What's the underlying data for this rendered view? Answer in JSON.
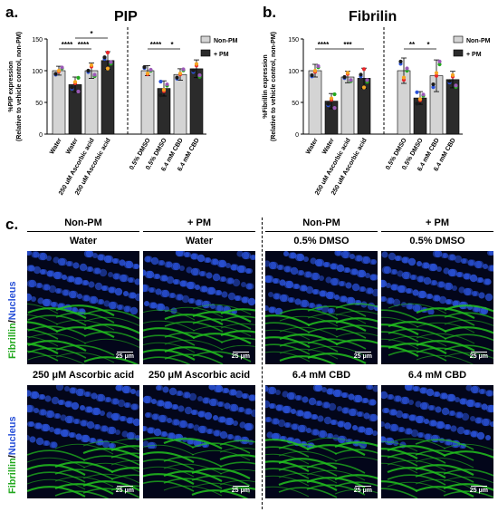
{
  "panels": {
    "a": "a.",
    "b": "b.",
    "c": "c."
  },
  "chart_data": [
    {
      "type": "bar",
      "title": "PIP",
      "ylabel": "%PIP expression",
      "ylabel2": "(Relative to vehicle control, non-PM)",
      "ylim": [
        0,
        150
      ],
      "yticks": [
        "0",
        "50",
        "100",
        "150"
      ],
      "categories": [
        "Water",
        "Water",
        "250 uM Ascorbic acid",
        "250 uM Ascorbic acid",
        "0.5% DMSO",
        "0.5% DMSO",
        "6.4 mM CBD",
        "6.4 mM CBD"
      ],
      "groups": [
        "Non-PM",
        "+ PM",
        "Non-PM",
        "+ PM",
        "Non-PM",
        "+ PM",
        "Non-PM",
        "+ PM"
      ],
      "values": [
        100,
        78,
        100,
        116,
        100,
        72,
        94,
        103
      ],
      "errors": [
        7,
        12,
        12,
        14,
        8,
        12,
        9,
        14
      ],
      "legend": [
        "Non-PM",
        "+ PM"
      ],
      "legend_position": "top-right",
      "significance": [
        {
          "label": "****"
        },
        {
          "label": "*"
        },
        {
          "label": "****"
        },
        {
          "label": "****"
        },
        {
          "label": "*"
        }
      ]
    },
    {
      "type": "bar",
      "title": "Fibrilin",
      "ylabel": "%Fibrillin expression",
      "ylabel2": "(Relative to vehicle control, non-PM)",
      "ylim": [
        0,
        150
      ],
      "yticks": [
        "0",
        "50",
        "100",
        "150"
      ],
      "categories": [
        "Water",
        "Water",
        "250 uM Ascorbic acid",
        "250 uM Ascorbic acid",
        "0.5% DMSO",
        "0.5% DMSO",
        "6.4 mM CBD",
        "6.4 mM CBD"
      ],
      "groups": [
        "Non-PM",
        "+ PM",
        "Non-PM",
        "+ PM",
        "Non-PM",
        "+ PM",
        "Non-PM",
        "+ PM"
      ],
      "values": [
        100,
        52,
        90,
        88,
        100,
        57,
        92,
        86
      ],
      "errors": [
        10,
        12,
        9,
        16,
        20,
        10,
        25,
        13
      ],
      "legend": [
        "Non-PM",
        "+ PM"
      ],
      "legend_position": "top-right",
      "significance": [
        {
          "label": "****"
        },
        {
          "label": "***"
        },
        {
          "label": "**"
        },
        {
          "label": "*"
        }
      ]
    }
  ],
  "microscopy": {
    "group_headers": [
      "Non-PM",
      "+ PM",
      "Non-PM",
      "+ PM"
    ],
    "top_labels": [
      "Water",
      "Water",
      "0.5% DMSO",
      "0.5% DMSO"
    ],
    "bottom_labels": [
      "250 μM Ascorbic acid",
      "250 μM Ascorbic acid",
      "6.4 mM CBD",
      "6.4 mM CBD"
    ],
    "scale_label": "25 μm",
    "stain_green": "Fibrillin",
    "stain_sep": "/",
    "stain_blue": "Nucleus"
  },
  "colors": {
    "nonpm_bar": "#d4d4d4",
    "pm_bar": "#2b2b2b",
    "fibrillin": "#22c21e",
    "nucleus": "#2a52d8"
  }
}
